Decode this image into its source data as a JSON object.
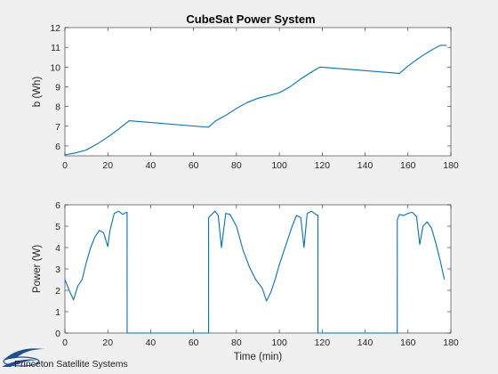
{
  "title": "CubeSat Power System",
  "colors": {
    "line": "#0072bd",
    "axes": "#262626",
    "figure_bg": "#f0f0f0",
    "plot_bg": "#ffffff",
    "logo": "#1f4e8c"
  },
  "logo": {
    "text": "Princeton Satellite Systems"
  },
  "chart_data": [
    {
      "type": "line",
      "title": "CubeSat Power System",
      "xlabel": "",
      "ylabel": "b (Wh)",
      "xlim": [
        0,
        180
      ],
      "ylim": [
        5.5,
        12
      ],
      "xticks": [
        0,
        20,
        40,
        60,
        80,
        100,
        120,
        140,
        160,
        180
      ],
      "yticks": [
        6,
        7,
        8,
        9,
        10,
        11,
        12
      ],
      "grid": false,
      "series": [
        {
          "x": [
            0,
            5,
            10,
            15,
            20,
            25,
            30,
            67,
            70,
            75,
            80,
            85,
            90,
            95,
            100,
            105,
            110,
            115,
            119,
            156,
            160,
            165,
            170,
            175,
            178
          ],
          "y": [
            5.55,
            5.65,
            5.8,
            6.1,
            6.45,
            6.85,
            7.28,
            6.95,
            7.25,
            7.55,
            7.9,
            8.2,
            8.42,
            8.55,
            8.7,
            9.0,
            9.4,
            9.75,
            10.0,
            9.68,
            10.05,
            10.45,
            10.8,
            11.1,
            11.1
          ]
        }
      ]
    },
    {
      "type": "line",
      "title": "",
      "xlabel": "Time (min)",
      "ylabel": "Power (W)",
      "xlim": [
        0,
        180
      ],
      "ylim": [
        0,
        6
      ],
      "xticks": [
        0,
        20,
        40,
        60,
        80,
        100,
        120,
        140,
        160,
        180
      ],
      "yticks": [
        0,
        1,
        2,
        3,
        4,
        5,
        6
      ],
      "grid": false,
      "series": [
        {
          "x": [
            0,
            2,
            4,
            6,
            8,
            10,
            12,
            14,
            16,
            18,
            20,
            21,
            23,
            25,
            27,
            28,
            29,
            29.01,
            67,
            67.01,
            68,
            70,
            71.5,
            73,
            75,
            77,
            80,
            83,
            86,
            89,
            92,
            94,
            96,
            98,
            100,
            102,
            104,
            106,
            108,
            110,
            111.5,
            113,
            115,
            117,
            118,
            118.01,
            155,
            155.01,
            156,
            158,
            160,
            162,
            164,
            165.5,
            167,
            169,
            171,
            173,
            175,
            177
          ],
          "y": [
            2.5,
            2.0,
            1.55,
            2.2,
            2.5,
            3.3,
            4.0,
            4.5,
            4.8,
            4.7,
            4.05,
            4.8,
            5.6,
            5.7,
            5.55,
            5.62,
            5.65,
            0,
            0,
            5.4,
            5.5,
            5.7,
            5.5,
            4.0,
            5.6,
            5.55,
            5.0,
            3.9,
            3.1,
            2.5,
            2.1,
            1.5,
            1.9,
            2.5,
            3.2,
            3.8,
            4.4,
            5.0,
            5.5,
            5.4,
            4.0,
            5.6,
            5.7,
            5.55,
            5.5,
            0,
            0,
            5.3,
            5.55,
            5.5,
            5.6,
            5.65,
            5.45,
            4.15,
            5.0,
            5.2,
            4.9,
            4.2,
            3.4,
            2.5
          ]
        }
      ]
    }
  ]
}
